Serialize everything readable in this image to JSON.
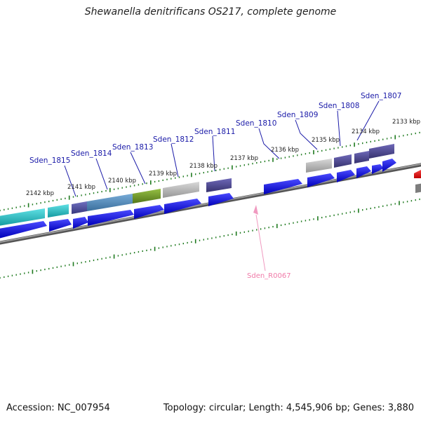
{
  "title": "Shewanella denitrificans OS217, complete genome",
  "footer": {
    "accession": "Accession: NC_007954",
    "summary": "Topology: circular; Length: 4,545,906 bp; Genes: 3,880"
  },
  "colors": {
    "backbone": "#7a7a7a",
    "tick": "#1f7a1f",
    "forward_gene": "#1010e0",
    "gene_label": "#1a1aa8",
    "rna_label": "#f07aa8",
    "rna_marker": "#f09ac0",
    "red_feature": "#ee0000",
    "cyan": "#1fc3c8",
    "slate": "#4f4fa0",
    "steel_blue": "#4d88b8",
    "olive": "#6f9628",
    "gray": "#b4b4b4",
    "purple": "#4b4694"
  },
  "kbp_labels": [
    "2142 kbp",
    "2141 kbp",
    "2140 kbp",
    "2139 kbp",
    "2138 kbp",
    "2137 kbp",
    "2136 kbp",
    "2135 kbp",
    "2134 kbp",
    "2133 kbp"
  ],
  "gene_labels": [
    "Sden_1815",
    "Sden_1814",
    "Sden_1813",
    "Sden_1812",
    "Sden_1811",
    "Sden_1810",
    "Sden_1809",
    "Sden_1808",
    "Sden_1807"
  ],
  "rna_label": "Sden_R0067"
}
